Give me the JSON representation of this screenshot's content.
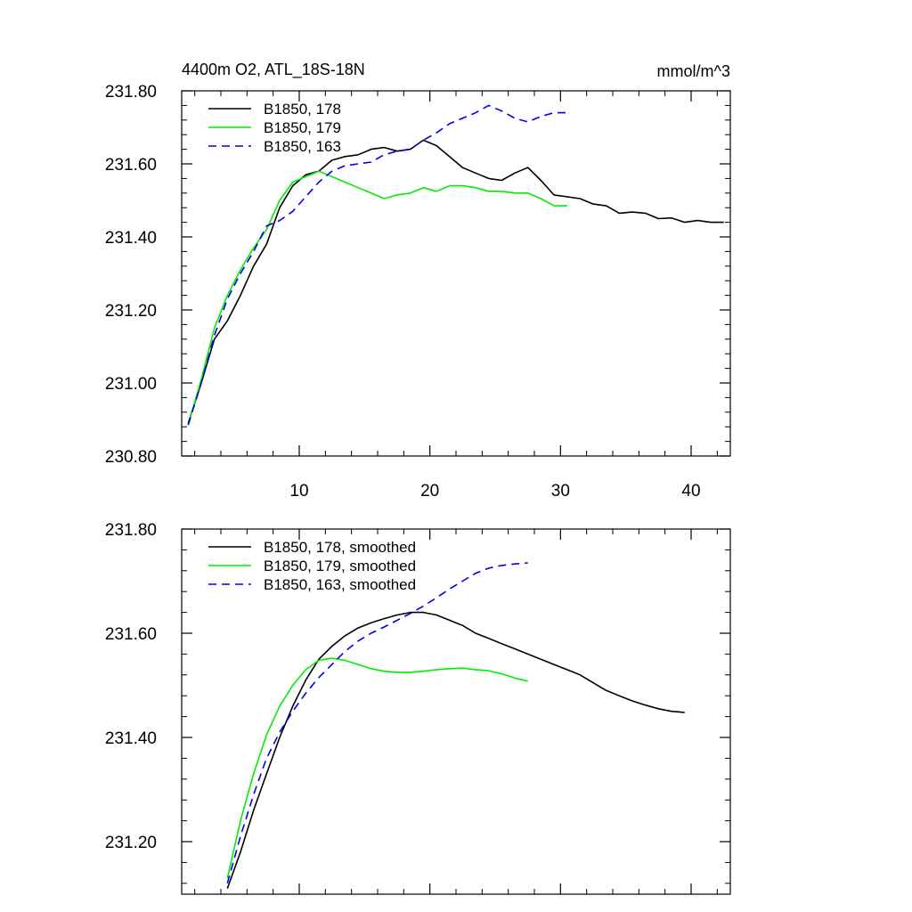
{
  "figure": {
    "title": "4400m O2, ATL_18S-18N",
    "units": "mmol/m^3"
  },
  "chart_data": [
    {
      "type": "line",
      "title": "4400m O2, ATL_18S-18N",
      "units": "mmol/m^3",
      "xlabel": "",
      "ylabel": "",
      "xlim": [
        1,
        43
      ],
      "ylim": [
        230.8,
        231.8
      ],
      "xticks": [
        10,
        20,
        30,
        40
      ],
      "xtick_labels": [
        "10",
        "20",
        "30",
        "40"
      ],
      "yticks": [
        230.8,
        231.0,
        231.2,
        231.4,
        231.6,
        231.8
      ],
      "ytick_labels": [
        "230.80",
        "231.00",
        "231.20",
        "231.40",
        "231.60",
        "231.80"
      ],
      "legend_position": "top-left",
      "series": [
        {
          "name": "B1850, 178",
          "color": "#000000",
          "dash": "solid",
          "x": [
            1.5,
            2.5,
            3.5,
            4.5,
            5.5,
            6.5,
            7.5,
            8.5,
            9.5,
            10.5,
            11.5,
            12.5,
            13.5,
            14.5,
            15.5,
            16.5,
            17.5,
            18.5,
            19.5,
            20.5,
            21.5,
            22.5,
            23.5,
            24.5,
            25.5,
            26.5,
            27.5,
            28.5,
            29.5,
            30.5,
            31.5,
            32.5,
            33.5,
            34.5,
            35.5,
            36.5,
            37.5,
            38.5,
            39.5,
            40.5,
            41.5,
            42.5
          ],
          "y": [
            230.89,
            231.0,
            231.12,
            231.17,
            231.24,
            231.32,
            231.38,
            231.48,
            231.54,
            231.57,
            231.58,
            231.61,
            231.62,
            231.625,
            231.64,
            231.645,
            231.635,
            231.64,
            231.665,
            231.65,
            231.62,
            231.59,
            231.575,
            231.56,
            231.555,
            231.575,
            231.59,
            231.555,
            231.515,
            231.51,
            231.505,
            231.49,
            231.485,
            231.465,
            231.468,
            231.465,
            231.45,
            231.452,
            231.44,
            231.445,
            231.44,
            231.44
          ]
        },
        {
          "name": "B1850, 179",
          "color": "#00ee00",
          "dash": "solid",
          "x": [
            1.5,
            2.5,
            3.5,
            4.5,
            5.5,
            6.5,
            7.5,
            8.5,
            9.5,
            10.5,
            11.5,
            12.5,
            13.5,
            14.5,
            15.5,
            16.5,
            17.5,
            18.5,
            19.5,
            20.5,
            21.5,
            22.5,
            23.5,
            24.5,
            25.5,
            26.5,
            27.5,
            28.5,
            29.5,
            30.5
          ],
          "y": [
            230.885,
            231.01,
            231.15,
            231.24,
            231.31,
            231.37,
            231.42,
            231.5,
            231.55,
            231.565,
            231.58,
            231.565,
            231.55,
            231.535,
            231.52,
            231.505,
            231.515,
            231.52,
            231.535,
            231.525,
            231.54,
            231.54,
            231.535,
            231.525,
            231.525,
            231.52,
            231.52,
            231.505,
            231.485,
            231.485
          ]
        },
        {
          "name": "B1850, 163",
          "color": "#0000ee",
          "dash": "dashed",
          "x": [
            1.5,
            2.5,
            3.5,
            4.5,
            5.5,
            6.5,
            7.5,
            8.5,
            9.5,
            10.5,
            11.5,
            12.5,
            13.5,
            14.5,
            15.5,
            16.5,
            17.5,
            18.5,
            19.5,
            20.5,
            21.5,
            22.5,
            23.5,
            24.5,
            25.5,
            26.5,
            27.5,
            28.5,
            29.5,
            30.5
          ],
          "y": [
            230.885,
            231.0,
            231.13,
            231.23,
            231.3,
            231.36,
            231.43,
            231.445,
            231.47,
            231.51,
            231.55,
            231.58,
            231.595,
            231.6,
            231.605,
            231.625,
            231.635,
            231.64,
            231.665,
            231.685,
            231.71,
            231.725,
            231.74,
            231.76,
            231.745,
            231.725,
            231.715,
            231.73,
            231.74,
            231.74
          ]
        }
      ]
    },
    {
      "type": "line",
      "title": "",
      "xlabel": "",
      "ylabel": "",
      "xlim": [
        1,
        43
      ],
      "ylim": [
        231.1,
        231.8
      ],
      "xticks": [
        10,
        20,
        30,
        40
      ],
      "xtick_labels": [],
      "yticks": [
        231.2,
        231.4,
        231.6,
        231.8
      ],
      "ytick_labels": [
        "231.20",
        "231.40",
        "231.60",
        "231.80"
      ],
      "legend_position": "top-left",
      "series": [
        {
          "name": "B1850, 178, smoothed",
          "color": "#000000",
          "dash": "solid",
          "x": [
            4.5,
            5.5,
            6.5,
            7.5,
            8.5,
            9.5,
            10.5,
            11.5,
            12.5,
            13.5,
            14.5,
            15.5,
            16.5,
            17.5,
            18.5,
            19.5,
            20.5,
            21.5,
            22.5,
            23.5,
            24.5,
            25.5,
            26.5,
            27.5,
            28.5,
            29.5,
            30.5,
            31.5,
            32.5,
            33.5,
            34.5,
            35.5,
            36.5,
            37.5,
            38.5,
            39.5
          ],
          "y": [
            231.11,
            231.18,
            231.26,
            231.33,
            231.4,
            231.46,
            231.51,
            231.55,
            231.575,
            231.595,
            231.61,
            231.62,
            231.628,
            231.635,
            231.64,
            231.64,
            231.635,
            231.625,
            231.615,
            231.6,
            231.59,
            231.58,
            231.57,
            231.56,
            231.55,
            231.54,
            231.53,
            231.52,
            231.505,
            231.49,
            231.48,
            231.47,
            231.462,
            231.455,
            231.45,
            231.448
          ]
        },
        {
          "name": "B1850, 179, smoothed",
          "color": "#00ee00",
          "dash": "solid",
          "x": [
            4.5,
            5.5,
            6.5,
            7.5,
            8.5,
            9.5,
            10.5,
            11.5,
            12.5,
            13.5,
            14.5,
            15.5,
            16.5,
            17.5,
            18.5,
            19.5,
            20.5,
            21.5,
            22.5,
            23.5,
            24.5,
            25.5,
            26.5,
            27.5
          ],
          "y": [
            231.13,
            231.24,
            231.33,
            231.405,
            231.46,
            231.5,
            231.53,
            231.548,
            231.552,
            231.548,
            231.54,
            231.532,
            231.527,
            231.525,
            231.525,
            231.527,
            231.53,
            231.532,
            231.533,
            231.53,
            231.528,
            231.522,
            231.514,
            231.508
          ]
        },
        {
          "name": "B1850, 163, smoothed",
          "color": "#0000ee",
          "dash": "dashed",
          "x": [
            4.5,
            5.5,
            6.5,
            7.5,
            8.5,
            9.5,
            10.5,
            11.5,
            12.5,
            13.5,
            14.5,
            15.5,
            16.5,
            17.5,
            18.5,
            19.5,
            20.5,
            21.5,
            22.5,
            23.5,
            24.5,
            25.5,
            26.5,
            27.5
          ],
          "y": [
            231.12,
            231.21,
            231.29,
            231.36,
            231.41,
            231.45,
            231.485,
            231.515,
            231.54,
            231.565,
            231.585,
            231.6,
            231.612,
            231.625,
            231.638,
            231.652,
            231.668,
            231.685,
            231.7,
            231.715,
            231.725,
            231.73,
            231.733,
            231.735
          ]
        }
      ]
    }
  ]
}
